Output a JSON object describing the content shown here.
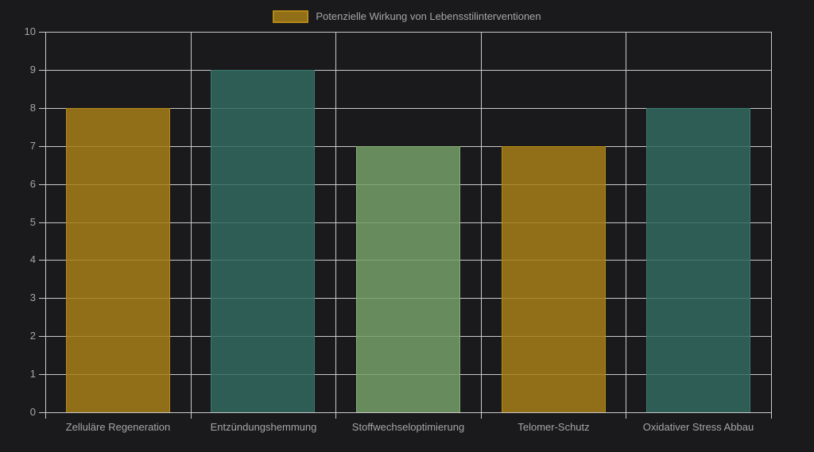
{
  "chart_data": {
    "type": "bar",
    "title": "",
    "legend": {
      "label": "Potenzielle Wirkung von Lebensstilinterventionen",
      "position": "top",
      "swatch_color_name": "gold"
    },
    "categories": [
      "Zelluläre Regeneration",
      "Entzündungshemmung",
      "Stoffwechseloptimierung",
      "Telomer-Schutz",
      "Oxidativer Stress Abbau"
    ],
    "values": [
      8,
      9,
      7,
      7,
      8
    ],
    "bar_color_names": [
      "gold",
      "teal",
      "sage",
      "gold",
      "teal"
    ],
    "ylim": [
      0,
      10
    ],
    "yticks": [
      0,
      1,
      2,
      3,
      4,
      5,
      6,
      7,
      8,
      9,
      10
    ],
    "grid": true,
    "xlabel": "",
    "ylabel": ""
  },
  "colors": {
    "background": "#1a1a1d",
    "grid": "#c9c9c9",
    "axis_text": "#a6a6a6",
    "legend_text": "#a6a6a6",
    "palette": {
      "gold": {
        "fill": "rgba(167,126,23,0.85)",
        "border": "#b68a18"
      },
      "teal": {
        "fill": "rgba(50,106,96,0.85)",
        "border": "#3a7a6e"
      },
      "sage": {
        "fill": "rgba(119,160,106,0.85)",
        "border": "#85ad77"
      }
    }
  }
}
